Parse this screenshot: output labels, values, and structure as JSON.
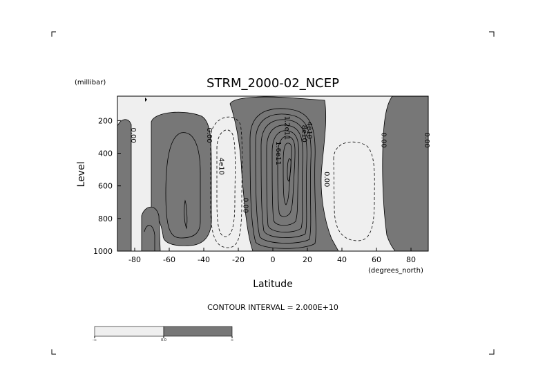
{
  "chart_data": {
    "type": "contour",
    "title": "STRM_2000-02_NCEP",
    "xlabel": "Latitude",
    "ylabel": "Level",
    "x_units": "(degrees_north)",
    "y_units": "(millibar)",
    "xlim": [
      -90,
      90
    ],
    "ylim": [
      1000,
      50
    ],
    "y_inverted": true,
    "x_ticks": [
      -80,
      -60,
      -40,
      -20,
      0,
      20,
      40,
      60,
      80
    ],
    "y_ticks": [
      200,
      400,
      600,
      800,
      1000
    ],
    "contour_interval_text": "CONTOUR INTERVAL = 2.000E+10",
    "fill_colors": {
      "negative": "#efefef",
      "positive": "#777777"
    },
    "legend": {
      "left_label": "-∞",
      "mid_label": "0.0",
      "right_label": "∞"
    },
    "contour_labels": [
      {
        "text": "0.00",
        "lat": -82,
        "p": 290
      },
      {
        "text": "0.00",
        "lat": -38,
        "p": 290
      },
      {
        "text": "4e10",
        "lat": -31,
        "p": 480
      },
      {
        "text": "0.00",
        "lat": -17,
        "p": 720
      },
      {
        "text": "1.2e11",
        "lat": 7,
        "p": 245
      },
      {
        "text": "1.6e11",
        "lat": 2,
        "p": 400
      },
      {
        "text": "4e10",
        "lat": 20,
        "p": 260
      },
      {
        "text": "8e10",
        "lat": 17,
        "p": 280
      },
      {
        "text": "0.00",
        "lat": 30,
        "p": 560
      },
      {
        "text": "0.00",
        "lat": 63,
        "p": 320
      },
      {
        "text": "0.00",
        "lat": 88,
        "p": 320
      }
    ],
    "positive_regions": [
      {
        "lat": [
          [
            -90,
            -82
          ],
          [
            -88,
            -82
          ],
          [
            -88,
            -84
          ],
          [
            -90,
            -84
          ]
        ],
        "p": [
          [
            170,
            170
          ],
          [
            1000,
            1000
          ]
        ]
      }
    ]
  }
}
